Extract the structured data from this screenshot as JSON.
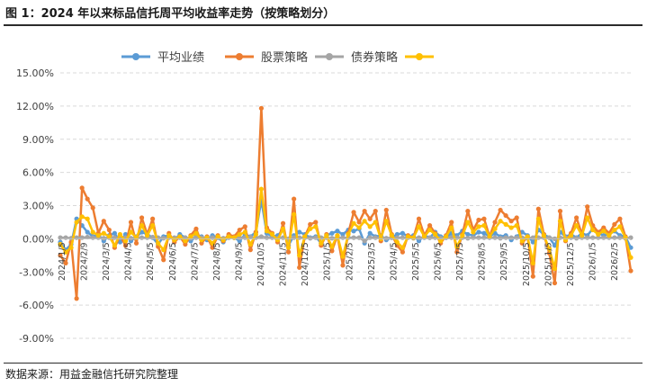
{
  "figure": {
    "title": "图 1：2024 年以来标品信托周平均收益率走势（按策略划分）",
    "source": "数据来源：用益金融信托研究院整理"
  },
  "chart_data": {
    "type": "line",
    "title": "",
    "xlabel": "",
    "ylabel": "",
    "ylim": [
      -9.0,
      15.0
    ],
    "yticks": [
      "15.00%",
      "12.00%",
      "9.00%",
      "6.00%",
      "3.00%",
      "0.00%",
      "-3.00%",
      "-6.00%",
      "-9.00%"
    ],
    "ytick_values": [
      15,
      12,
      9,
      6,
      3,
      0,
      -3,
      -6,
      -9
    ],
    "grid": "horizontal dashed",
    "legend_position": "top",
    "x_tick_labels": [
      "2024/1/5",
      "2024/2/9",
      "2024/3/5",
      "2024/4/5",
      "2024/5/5",
      "2024/6/5",
      "2024/7/5",
      "2024/8/5",
      "2024/9/5",
      "2024/10/5",
      "2024/11/5",
      "2024/12/5",
      "2025/1/5",
      "2025/2/5",
      "2025/3/5",
      "2025/4/5",
      "2025/5/5",
      "2025/6/5",
      "2025/7/5",
      "2025/8/5",
      "2025/9/5",
      "2025/10/5",
      "2025/11/5",
      "2025/12/5",
      "2026/1/5",
      "2026/2/5"
    ],
    "series": [
      {
        "name": "平均业绩",
        "color": "#5b9bd5",
        "values": [
          -0.3,
          -1.0,
          -0.5,
          1.8,
          1.2,
          0.6,
          0.2,
          0.4,
          -0.2,
          0.3,
          0.5,
          -0.3,
          0.4,
          -0.2,
          0.2,
          0.6,
          0.4,
          0.1,
          -0.5,
          0.2,
          0.3,
          -0.1,
          0.4,
          0.1,
          -0.2,
          0.2,
          0.2,
          -0.1,
          0.3,
          0.1,
          -0.3,
          0.2,
          0.1,
          -0.2,
          0.4,
          0.2,
          0.6,
          3.5,
          0.5,
          0.2,
          0.3,
          0.8,
          -0.6,
          0.3,
          0.6,
          0.4,
          0.1,
          0.2,
          -0.4,
          0.3,
          0.5,
          0.7,
          0.4,
          0.8,
          0.7,
          0.9,
          -0.4,
          0.5,
          0.2,
          0.3,
          -0.1,
          0.1,
          0.4,
          0.5,
          0.2,
          0.3,
          -0.2,
          0.3,
          0.1,
          0.6,
          0.2,
          0.1,
          0.5,
          0.3,
          0.7,
          0.4,
          0.3,
          0.6,
          0.5,
          0.2,
          0.5,
          0.2,
          0.3,
          -0.1,
          0.2,
          0.6,
          0.3,
          -0.3,
          0.8,
          0.4,
          0.1,
          -0.6,
          0.6,
          0.2,
          0.4,
          0.1,
          0.5,
          0.3,
          0.9,
          0.5,
          0.3,
          0.4,
          0.7,
          0.3,
          0.2,
          -0.8
        ]
      },
      {
        "name": "股票策略",
        "color": "#ed7d31",
        "values": [
          -1.5,
          -2.2,
          -0.3,
          -5.4,
          4.6,
          3.6,
          2.8,
          0.5,
          1.6,
          0.8,
          -0.8,
          0.3,
          -0.6,
          1.5,
          -0.4,
          1.9,
          0.4,
          1.8,
          -0.7,
          -1.9,
          0.5,
          -0.3,
          0.2,
          -0.5,
          0.3,
          0.9,
          -0.4,
          0.2,
          -0.8,
          0.3,
          -0.2,
          0.4,
          0.2,
          0.8,
          1.1,
          -1.0,
          0.6,
          11.8,
          1.0,
          0.5,
          -0.3,
          1.4,
          -1.2,
          3.6,
          -2.6,
          0.2,
          1.3,
          1.5,
          -0.6,
          0.4,
          -1.1,
          0.3,
          -2.4,
          0.5,
          2.4,
          1.5,
          2.5,
          1.8,
          2.5,
          -0.2,
          2.6,
          0.4,
          -0.6,
          -1.2,
          0.3,
          0.1,
          1.8,
          0.3,
          1.2,
          0.5,
          -0.4,
          0.3,
          1.5,
          -1.2,
          0.4,
          2.5,
          0.8,
          1.7,
          1.8,
          0.2,
          1.5,
          2.6,
          2.1,
          1.6,
          1.9,
          -0.4,
          0.2,
          -3.4,
          2.7,
          0.4,
          -1.3,
          -4.0,
          2.5,
          -0.2,
          0.5,
          1.9,
          0.4,
          2.9,
          1.2,
          0.6,
          1.0,
          0.5,
          1.3,
          1.8,
          0.2,
          -2.9
        ]
      },
      {
        "name": "债券策略",
        "color": "#a5a5a5",
        "values": [
          0.1,
          0.1,
          0.05,
          0.1,
          0.1,
          0.15,
          0.1,
          0.1,
          0.05,
          0.1,
          0.1,
          0.1,
          0.1,
          0.05,
          0.1,
          0.1,
          0.1,
          0.15,
          0.1,
          0.05,
          0.1,
          0.1,
          0.1,
          0.1,
          0.05,
          0.1,
          0.1,
          0.1,
          0.1,
          0.1,
          0.05,
          0.1,
          0.1,
          0.1,
          0.1,
          0.15,
          0.1,
          0.2,
          0.1,
          0.1,
          0.05,
          0.1,
          0.0,
          0.1,
          0.1,
          0.1,
          0.05,
          0.1,
          0.1,
          0.1,
          0.05,
          0.1,
          0.1,
          0.1,
          0.1,
          0.1,
          -0.2,
          0.1,
          0.1,
          0.1,
          0.05,
          0.1,
          0.1,
          0.1,
          0.1,
          0.05,
          0.1,
          0.1,
          0.1,
          0.1,
          0.05,
          0.1,
          0.1,
          0.1,
          0.1,
          0.05,
          0.1,
          0.1,
          0.1,
          0.1,
          0.1,
          0.05,
          0.1,
          0.1,
          0.1,
          0.1,
          0.05,
          0.1,
          0.1,
          0.1,
          0.1,
          0.0,
          0.1,
          0.1,
          0.1,
          0.05,
          0.1,
          0.1,
          0.1,
          0.1,
          0.1,
          0.1,
          0.1,
          0.1,
          0.05,
          0.1
        ]
      },
      {
        "name": "",
        "color": "#ffc000",
        "values": [
          -0.5,
          -1.2,
          -0.8,
          1.5,
          2.0,
          1.8,
          0.6,
          0.3,
          0.5,
          0.2,
          -0.6,
          0.4,
          -0.2,
          0.6,
          0.1,
          1.2,
          0.3,
          1.2,
          -0.4,
          -1.0,
          0.3,
          -0.1,
          0.2,
          -0.2,
          0.2,
          0.5,
          -0.1,
          0.1,
          -0.4,
          0.2,
          -0.1,
          0.2,
          0.1,
          0.4,
          0.6,
          -0.5,
          0.4,
          4.5,
          0.7,
          0.4,
          -0.1,
          0.9,
          -0.8,
          2.2,
          -1.5,
          0.2,
          0.9,
          1.1,
          -0.4,
          0.3,
          -0.7,
          0.3,
          -1.6,
          0.4,
          1.4,
          1.0,
          1.6,
          1.1,
          1.5,
          0.0,
          1.6,
          0.3,
          -0.3,
          -0.8,
          0.2,
          0.1,
          1.1,
          0.2,
          0.8,
          0.4,
          -0.2,
          0.2,
          1.0,
          -0.7,
          0.3,
          1.5,
          0.6,
          1.1,
          1.2,
          0.2,
          0.9,
          1.6,
          1.3,
          1.0,
          1.2,
          -0.2,
          0.2,
          -2.2,
          1.8,
          0.3,
          -0.9,
          -2.7,
          1.6,
          -0.1,
          0.3,
          1.2,
          0.3,
          1.9,
          0.8,
          0.4,
          0.7,
          0.3,
          0.8,
          1.1,
          0.1,
          -1.7
        ]
      }
    ]
  }
}
